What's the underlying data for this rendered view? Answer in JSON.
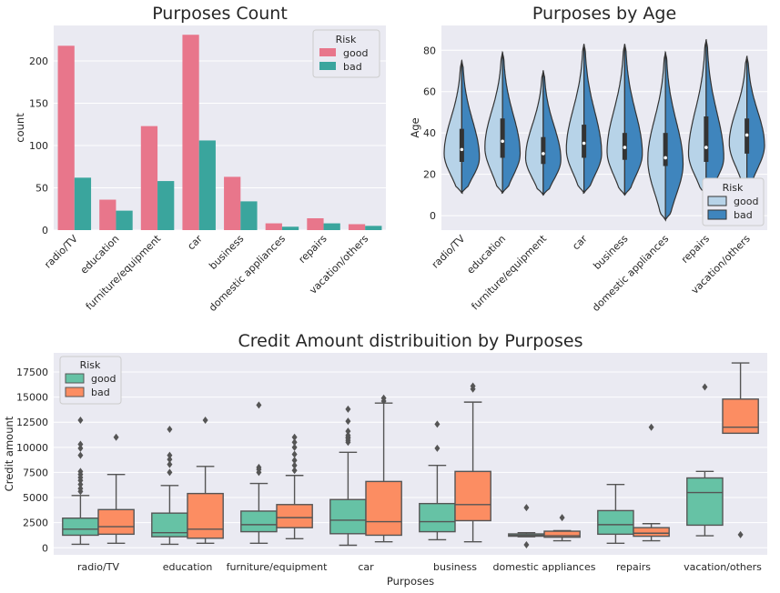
{
  "colors": {
    "bg": "#eaeaf2",
    "grid": "#ffffff",
    "good_pink": "#e8768b",
    "bad_teal": "#3aa59d",
    "violin_light": "#b7d3e8",
    "violin_dark": "#3f85bd",
    "box_good": "#66c2a5",
    "box_bad": "#fc8d62",
    "line": "#555555"
  },
  "chart_data": [
    {
      "type": "bar",
      "title": "Purposes Count",
      "xlabel": "",
      "ylabel": "count",
      "ylim": [
        0,
        242
      ],
      "yticks": [
        0,
        50,
        100,
        150,
        200
      ],
      "categories": [
        "radio/TV",
        "education",
        "furniture/equipment",
        "car",
        "business",
        "domestic appliances",
        "repairs",
        "vacation/others"
      ],
      "series": [
        {
          "name": "good",
          "values": [
            218,
            36,
            123,
            231,
            63,
            8,
            14,
            7
          ]
        },
        {
          "name": "bad",
          "values": [
            62,
            23,
            58,
            106,
            34,
            4,
            8,
            5
          ]
        }
      ],
      "legend": {
        "title": "Risk",
        "position": "top-right"
      },
      "grid": true
    },
    {
      "type": "violin",
      "title": "Purposes by Age",
      "xlabel": "",
      "ylabel": "Age",
      "ylim": [
        -7,
        92
      ],
      "yticks": [
        0,
        20,
        40,
        60,
        80
      ],
      "categories": [
        "radio/TV",
        "education",
        "furniture/equipment",
        "car",
        "business",
        "domestic appliances",
        "repairs",
        "vacation/others"
      ],
      "violins": [
        {
          "min": 11,
          "max": 75,
          "q1": 26,
          "median": 32,
          "q3": 42,
          "mode": 30,
          "bad_mode": 28
        },
        {
          "min": 11,
          "max": 79,
          "q1": 28,
          "median": 36,
          "q3": 47,
          "mode": 33,
          "bad_mode": 30
        },
        {
          "min": 10,
          "max": 70,
          "q1": 25,
          "median": 30,
          "q3": 38,
          "mode": 28,
          "bad_mode": 27
        },
        {
          "min": 11,
          "max": 83,
          "q1": 28,
          "median": 35,
          "q3": 44,
          "mode": 32,
          "bad_mode": 30
        },
        {
          "min": 10,
          "max": 83,
          "q1": 27,
          "median": 33,
          "q3": 40,
          "mode": 31,
          "bad_mode": 30
        },
        {
          "min": -2,
          "max": 79,
          "q1": 24,
          "median": 28,
          "q3": 40,
          "mode": 27,
          "bad_mode": 25
        },
        {
          "min": 10,
          "max": 85,
          "q1": 26,
          "median": 33,
          "q3": 48,
          "mode": 30,
          "bad_mode": 28
        },
        {
          "min": 14,
          "max": 77,
          "q1": 30,
          "median": 39,
          "q3": 47,
          "mode": 35,
          "bad_mode": 34
        }
      ],
      "legend": {
        "title": "Risk",
        "position": "bottom-right",
        "entries": [
          "good",
          "bad"
        ]
      },
      "grid": true
    },
    {
      "type": "box",
      "title": "Credit Amount distribuition by Purposes",
      "xlabel": "Purposes",
      "ylabel": "Credit amount",
      "ylim": [
        -700,
        19400
      ],
      "yticks": [
        0,
        2500,
        5000,
        7500,
        10000,
        12500,
        15000,
        17500
      ],
      "categories": [
        "radio/TV",
        "education",
        "furniture/equipment",
        "car",
        "business",
        "domestic appliances",
        "repairs",
        "vacation/others"
      ],
      "series": [
        {
          "name": "good",
          "boxes": [
            {
              "whislo": 350,
              "q1": 1250,
              "med": 1850,
              "q3": 2950,
              "whishi": 5200,
              "fliers": [
                5600,
                5900,
                6300,
                6700,
                7000,
                7300,
                7600,
                9200,
                9900,
                10300,
                12700
              ]
            },
            {
              "whislo": 350,
              "q1": 1100,
              "med": 1500,
              "q3": 3450,
              "whishi": 6200,
              "fliers": [
                7500,
                8300,
                8800,
                9200,
                11800
              ]
            },
            {
              "whislo": 450,
              "q1": 1600,
              "med": 2300,
              "q3": 3650,
              "whishi": 6400,
              "fliers": [
                7500,
                7800,
                8000,
                14200
              ]
            },
            {
              "whislo": 250,
              "q1": 1400,
              "med": 2750,
              "q3": 4800,
              "whishi": 9500,
              "fliers": [
                10500,
                10700,
                10900,
                11000,
                11200,
                11600,
                12600,
                13800
              ]
            },
            {
              "whislo": 800,
              "q1": 1600,
              "med": 2600,
              "q3": 4400,
              "whishi": 8200,
              "fliers": [
                9900,
                12300
              ]
            },
            {
              "whislo": 1100,
              "q1": 1150,
              "med": 1250,
              "q3": 1380,
              "whishi": 1500,
              "fliers": [
                300,
                4000
              ]
            },
            {
              "whislo": 450,
              "q1": 1350,
              "med": 2300,
              "q3": 3700,
              "whishi": 6300,
              "fliers": []
            },
            {
              "whislo": 1200,
              "q1": 2250,
              "med": 5500,
              "q3": 6950,
              "whishi": 7600,
              "fliers": [
                16000
              ]
            }
          ]
        },
        {
          "name": "bad",
          "boxes": [
            {
              "whislo": 450,
              "q1": 1350,
              "med": 2100,
              "q3": 3800,
              "whishi": 7300,
              "fliers": [
                11000
              ]
            },
            {
              "whislo": 450,
              "q1": 950,
              "med": 1850,
              "q3": 5400,
              "whishi": 8100,
              "fliers": [
                12700
              ]
            },
            {
              "whislo": 900,
              "q1": 2000,
              "med": 3000,
              "q3": 4300,
              "whishi": 7200,
              "fliers": [
                7700,
                8200,
                8700,
                9300,
                10000,
                10500,
                11000
              ]
            },
            {
              "whislo": 600,
              "q1": 1250,
              "med": 2600,
              "q3": 6600,
              "whishi": 14400,
              "fliers": [
                14600,
                14900
              ]
            },
            {
              "whislo": 600,
              "q1": 2700,
              "med": 4300,
              "q3": 7600,
              "whishi": 14500,
              "fliers": [
                15800,
                16100
              ]
            },
            {
              "whislo": 700,
              "q1": 1050,
              "med": 1200,
              "q3": 1650,
              "whishi": 1700,
              "fliers": [
                3000
              ]
            },
            {
              "whislo": 700,
              "q1": 1150,
              "med": 1450,
              "q3": 2000,
              "whishi": 2400,
              "fliers": [
                12000
              ]
            },
            {
              "whislo": 11400,
              "q1": 11400,
              "med": 12000,
              "q3": 14800,
              "whishi": 18400,
              "fliers": [
                1300
              ]
            }
          ]
        }
      ],
      "legend": {
        "title": "Risk",
        "position": "top-left"
      },
      "grid": true
    }
  ]
}
